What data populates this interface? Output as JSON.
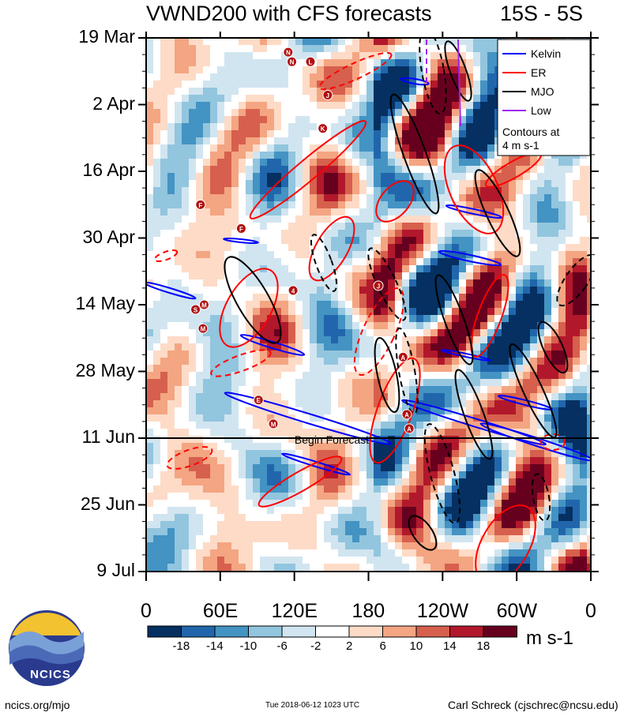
{
  "title": {
    "left": "VWND200 with CFS forecasts",
    "right": "15S - 5S"
  },
  "chart_data": {
    "type": "heatmap",
    "variable": "VWND200",
    "y_tick_labels": [
      "19 Mar",
      "2 Apr",
      "16 Apr",
      "30 Apr",
      "14 May",
      "28 May",
      "11 Jun",
      "25 Jun",
      "9 Jul"
    ],
    "x_tick_labels": [
      "0",
      "60E",
      "120E",
      "180",
      "120W",
      "60W",
      "0"
    ],
    "xlim_deg_east": [
      0,
      360
    ],
    "ylim": [
      "19 Mar",
      "9 Jul"
    ],
    "forecast_start": "11 Jun",
    "forecast_label": "Begin Forecast",
    "legend": {
      "position": "top-right",
      "entries": [
        {
          "name": "Kelvin",
          "color": "#0000ff"
        },
        {
          "name": "ER",
          "color": "#ff0000"
        },
        {
          "name": "MJO",
          "color": "#000000"
        },
        {
          "name": "Low",
          "color": "#a020f0"
        }
      ],
      "note": "Contours at\n4 m s-1"
    },
    "colorbar": {
      "labels": [
        "-18",
        "-14",
        "-10",
        "-6",
        "-2",
        "2",
        "6",
        "10",
        "14",
        "18"
      ],
      "colors": [
        "#053061",
        "#2166ac",
        "#4393c3",
        "#92c5de",
        "#d1e5f0",
        "#ffffff",
        "#fddbc7",
        "#f4a582",
        "#d6604d",
        "#b2182b",
        "#67001f"
      ],
      "units": "m s-1"
    },
    "storm_markers": [
      {
        "label": "N",
        "lon": 115,
        "date": "22 Mar"
      },
      {
        "label": "N",
        "lon": 118,
        "date": "24 Mar"
      },
      {
        "label": "L",
        "lon": 133,
        "date": "24 Mar"
      },
      {
        "label": "J",
        "lon": 147,
        "date": "31 Mar"
      },
      {
        "label": "K",
        "lon": 143,
        "date": "7 Apr"
      },
      {
        "label": "F",
        "lon": 44,
        "date": "23 Apr"
      },
      {
        "label": "F",
        "lon": 77,
        "date": "28 Apr"
      },
      {
        "label": "M",
        "lon": 47,
        "date": "14 May"
      },
      {
        "label": "S",
        "lon": 40,
        "date": "15 May"
      },
      {
        "label": "M",
        "lon": 46,
        "date": "19 May"
      },
      {
        "label": "4",
        "lon": 119,
        "date": "11 May"
      },
      {
        "label": "J",
        "lon": 188,
        "date": "10 May"
      },
      {
        "label": "A",
        "lon": 208,
        "date": "25 May"
      },
      {
        "label": "E",
        "lon": 91,
        "date": "3 Jun"
      },
      {
        "label": "M",
        "lon": 103,
        "date": "8 Jun"
      },
      {
        "label": "A",
        "lon": 211,
        "date": "6 Jun"
      },
      {
        "label": "A",
        "lon": 213,
        "date": "9 Jun"
      }
    ]
  },
  "logo": {
    "text": "NCICS"
  },
  "footer": {
    "left": "ncics.org/mjo",
    "middle": "Tue 2018-06-12 1023 UTC",
    "right": "Carl Schreck (cjschrec@ncsu.edu)"
  }
}
